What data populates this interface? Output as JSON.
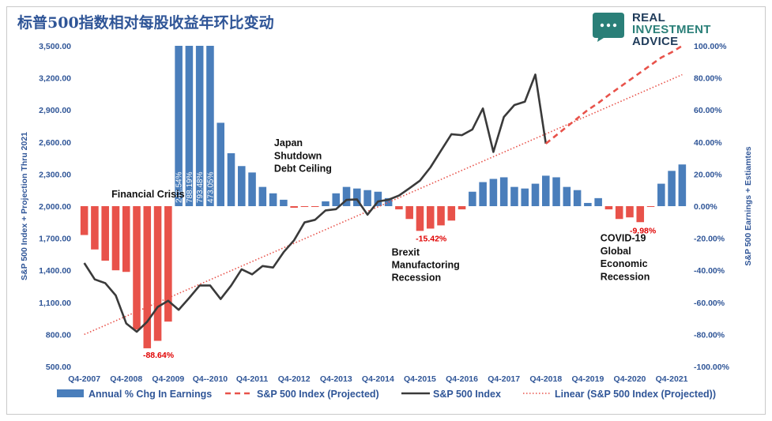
{
  "title": "标普500指数相对每股收益年环比变动",
  "logo": {
    "line1": "REAL",
    "line2": "INVESTMENT",
    "line3": "ADVICE",
    "icon": "speech-bubble-icon",
    "color": "#2a7f78"
  },
  "chart_data": {
    "type": "bar+line",
    "ylabel_left": "S&P 500 Index + Projection Thru 2021",
    "ylabel_right": "S&P 500 Earnings + Estiamtes",
    "yleft_ticks": [
      "3,500.00",
      "3,200.00",
      "2,900.00",
      "2,600.00",
      "2,300.00",
      "2,000.00",
      "1,700.00",
      "1,400.00",
      "1,100.00",
      "800.00",
      "500.00"
    ],
    "yright_ticks": [
      "100.00%",
      "80.00%",
      "60.00%",
      "40.00%",
      "20.00%",
      "0.00%",
      "-20.00%",
      "-40.00%",
      "-60.00%",
      "-80.00%",
      "-100.00%"
    ],
    "yleft_range": [
      500,
      3500
    ],
    "yright_range": [
      -100,
      100
    ],
    "x_labels": [
      "Q4-2007",
      "Q4-2008",
      "Q4-2009",
      "Q4--2010",
      "Q4-2011",
      "Q4-2012",
      "Q4-2013",
      "Q4-2014",
      "Q4-2015",
      "Q4-2016",
      "Q4-2017",
      "Q4-2018",
      "Q4-2019",
      "Q4-2020",
      "Q4-2021"
    ],
    "quarters_start": "Q4-2007",
    "earnings_pct": [
      -18,
      -27,
      -34,
      -40,
      -41,
      -77,
      -88.64,
      -84,
      -72,
      100,
      100,
      100,
      100,
      52,
      33,
      25,
      21,
      12,
      8,
      4,
      -1,
      -0.5,
      -0.5,
      3,
      8,
      12,
      11,
      10,
      9,
      5,
      -2,
      -8,
      -15.42,
      -14,
      -12,
      -9,
      -2,
      9,
      15,
      17,
      18,
      12,
      11,
      14,
      19,
      18,
      12,
      10,
      2,
      5,
      -2,
      -8,
      -7,
      -9.98,
      -0.5,
      14,
      22,
      26
    ],
    "bar_inside_labels": [
      {
        "index": 9,
        "text": "242.54%"
      },
      {
        "index": 10,
        "text": "788.19%"
      },
      {
        "index": 11,
        "text": "793.48%"
      },
      {
        "index": 12,
        "text": "473.05%"
      }
    ],
    "sp500_index": [
      1468,
      1315,
      1280,
      1165,
      903,
      825,
      919,
      1057,
      1115,
      1030,
      1141,
      1258,
      1258,
      1131,
      1257,
      1409,
      1362,
      1440,
      1426,
      1569,
      1681,
      1848,
      1872,
      1960,
      1972,
      2059,
      2063,
      1920,
      2044,
      2060,
      2099,
      2168,
      2239,
      2363,
      2519,
      2673,
      2664,
      2718,
      2914,
      2507,
      2834,
      2946,
      2977,
      3231,
      2585
    ],
    "sp500_projected": [
      {
        "q": 48,
        "v": 2900
      },
      {
        "q": 49,
        "v": 2965
      },
      {
        "q": 50,
        "v": 3040
      },
      {
        "q": 51,
        "v": 3110
      },
      {
        "q": 52,
        "v": 3180
      },
      {
        "q": 53,
        "v": 3250
      },
      {
        "q": 54,
        "v": 3320
      },
      {
        "q": 55,
        "v": 3390
      },
      {
        "q": 56,
        "v": 3440
      },
      {
        "q": 57,
        "v": 3500
      }
    ],
    "linear_trend": {
      "start_q": 0,
      "start_v": 800,
      "end_q": 57,
      "end_v": 3230
    },
    "annotations": [
      {
        "text": "Financial Crisis",
        "q": 2.6,
        "v": 2080,
        "cls": "anno"
      },
      {
        "text": "-88.64%",
        "q": 5.6,
        "pct": -94.5,
        "cls": "anno-red"
      },
      {
        "text": "Japan",
        "q": 18.1,
        "v": 2560,
        "cls": "anno"
      },
      {
        "text": "Shutdown",
        "q": 18.1,
        "v": 2440,
        "cls": "anno"
      },
      {
        "text": "Debt Ceiling",
        "q": 18.1,
        "v": 2320,
        "cls": "anno"
      },
      {
        "text": "-15.42%",
        "q": 31.6,
        "pct": -22,
        "cls": "anno-red"
      },
      {
        "text": "Brexit",
        "q": 29.3,
        "v": 1540,
        "cls": "anno"
      },
      {
        "text": "Manufactoring",
        "q": 29.3,
        "v": 1420,
        "cls": "anno"
      },
      {
        "text": "Recession",
        "q": 29.3,
        "v": 1300,
        "cls": "anno"
      },
      {
        "text": "-9.98%",
        "q": 52.0,
        "pct": -17,
        "cls": "anno-red"
      },
      {
        "text": "COVID-19",
        "q": 49.2,
        "v": 1670,
        "cls": "anno"
      },
      {
        "text": "Global",
        "q": 49.2,
        "v": 1550,
        "cls": "anno"
      },
      {
        "text": "Economic",
        "q": 49.2,
        "v": 1430,
        "cls": "anno"
      },
      {
        "text": "Recession",
        "q": 49.2,
        "v": 1310,
        "cls": "anno"
      }
    ],
    "legend": [
      {
        "label": "Annual % Chg In Earnings",
        "type": "bar",
        "color": "#4a7ebb"
      },
      {
        "label": "S&P 500 Index (Projected)",
        "type": "dashed",
        "color": "#e8524a"
      },
      {
        "label": "S&P 500 Index",
        "type": "solid",
        "color": "#3a3a3a"
      },
      {
        "label": "Linear (S&P 500 Index (Projected))",
        "type": "dotted",
        "color": "#e8524a"
      }
    ],
    "colors": {
      "bar_positive": "#4a7ebb",
      "bar_negative": "#e8524a",
      "line": "#3a3a3a",
      "projected": "#e8524a",
      "axis_text": "#2f5597"
    }
  }
}
